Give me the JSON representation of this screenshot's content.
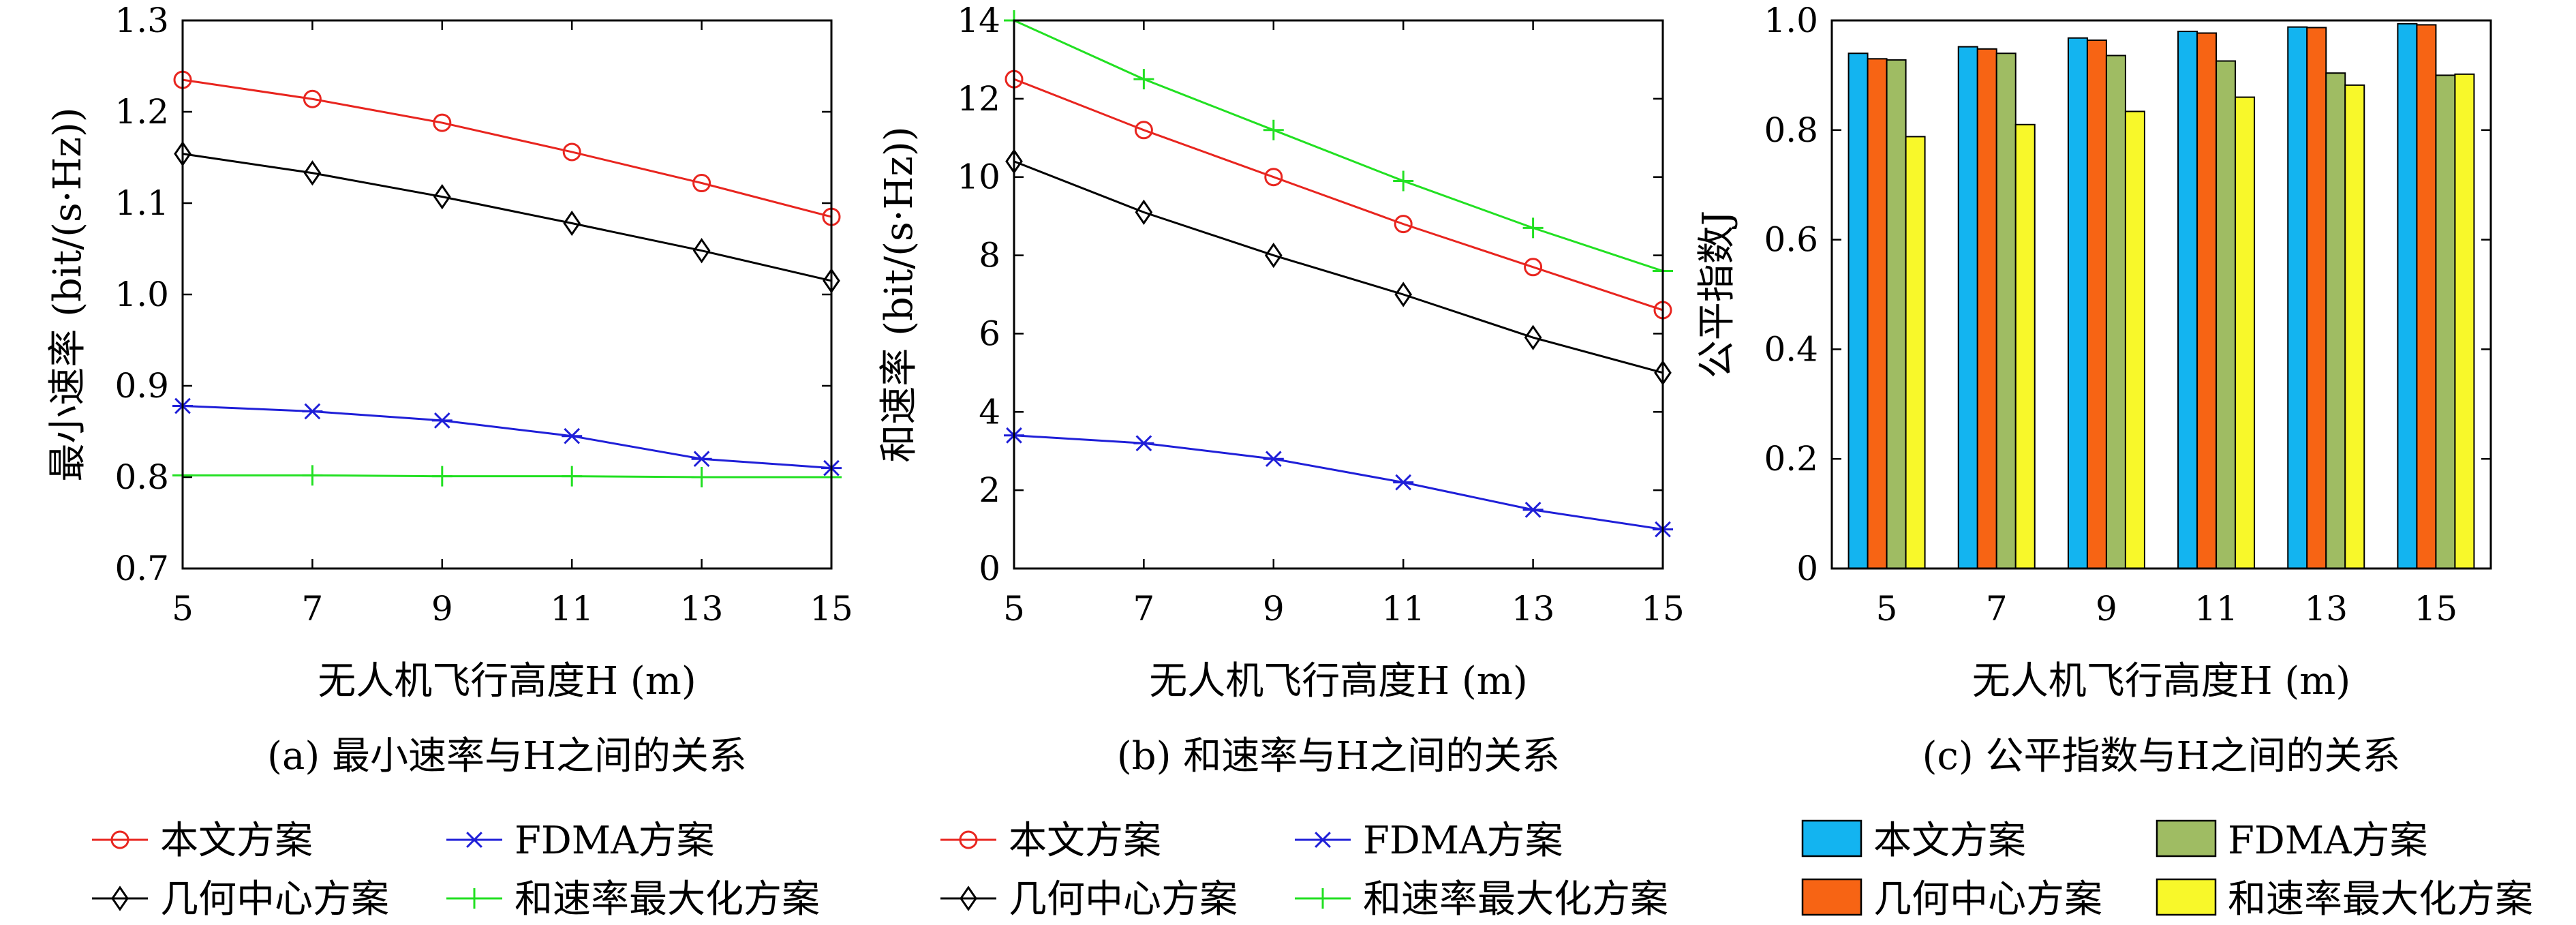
{
  "chart_data": [
    {
      "type": "line",
      "caption": "(a) 最小速率与H之间的关系",
      "xlabel": "无人机飞行高度H (m)",
      "ylabel": "最小速率 (bit/(s·Hz))",
      "x": [
        5,
        7,
        9,
        11,
        13,
        15
      ],
      "xlim": [
        5,
        15
      ],
      "ylim": [
        0.7,
        1.3
      ],
      "xticks": [
        "5",
        "7",
        "9",
        "11",
        "13",
        "15"
      ],
      "yticks": [
        "0.7",
        "0.8",
        "0.9",
        "1.0",
        "1.1",
        "1.2",
        "1.3"
      ],
      "series": [
        {
          "name": "本文方案",
          "color": "#e8251f",
          "marker": "circle",
          "values": [
            1.235,
            1.214,
            1.188,
            1.156,
            1.122,
            1.085
          ]
        },
        {
          "name": "FDMA方案",
          "color": "#1f1fd8",
          "marker": "star",
          "values": [
            0.878,
            0.872,
            0.862,
            0.845,
            0.82,
            0.81
          ]
        },
        {
          "name": "几何中心方案",
          "color": "#000000",
          "marker": "diamond",
          "values": [
            1.154,
            1.133,
            1.107,
            1.078,
            1.048,
            1.015
          ]
        },
        {
          "name": "和速率最大化方案",
          "color": "#22e022",
          "marker": "plus",
          "values": [
            0.802,
            0.802,
            0.801,
            0.801,
            0.8,
            0.8
          ]
        }
      ]
    },
    {
      "type": "line",
      "caption": "(b) 和速率与H之间的关系",
      "xlabel": "无人机飞行高度H (m)",
      "ylabel": "和速率 (bit/(s·Hz))",
      "x": [
        5,
        7,
        9,
        11,
        13,
        15
      ],
      "xlim": [
        5,
        15
      ],
      "ylim": [
        0,
        14
      ],
      "xticks": [
        "5",
        "7",
        "9",
        "11",
        "13",
        "15"
      ],
      "yticks": [
        "0",
        "2",
        "4",
        "6",
        "8",
        "10",
        "12",
        "14"
      ],
      "series": [
        {
          "name": "本文方案",
          "color": "#e8251f",
          "marker": "circle",
          "values": [
            12.5,
            11.2,
            10.0,
            8.8,
            7.7,
            6.6
          ]
        },
        {
          "name": "FDMA方案",
          "color": "#1f1fd8",
          "marker": "star",
          "values": [
            3.4,
            3.2,
            2.8,
            2.2,
            1.5,
            1.0
          ]
        },
        {
          "name": "几何中心方案",
          "color": "#000000",
          "marker": "diamond",
          "values": [
            10.4,
            9.1,
            8.0,
            7.0,
            5.9,
            5.0
          ]
        },
        {
          "name": "和速率最大化方案",
          "color": "#22e022",
          "marker": "plus",
          "values": [
            14.0,
            12.5,
            11.2,
            9.9,
            8.7,
            7.6
          ]
        }
      ]
    },
    {
      "type": "bar",
      "caption": "(c) 公平指数与H之间的关系",
      "xlabel": "无人机飞行高度H (m)",
      "ylabel": "公平指数J",
      "categories": [
        "5",
        "7",
        "9",
        "11",
        "13",
        "15"
      ],
      "ylim": [
        0,
        1.0
      ],
      "yticks": [
        "0",
        "0.2",
        "0.4",
        "0.6",
        "0.8",
        "1.0"
      ],
      "series": [
        {
          "name": "本文方案",
          "color": "#13b4f0",
          "values": [
            0.94,
            0.952,
            0.968,
            0.98,
            0.988,
            0.994
          ]
        },
        {
          "name": "几何中心方案",
          "color": "#f76414",
          "values": [
            0.93,
            0.948,
            0.964,
            0.977,
            0.987,
            0.992
          ]
        },
        {
          "name": "FDMA方案",
          "color": "#9fbc63",
          "values": [
            0.928,
            0.94,
            0.936,
            0.926,
            0.904,
            0.9
          ]
        },
        {
          "name": "和速率最大化方案",
          "color": "#f8f82a",
          "values": [
            0.788,
            0.81,
            0.834,
            0.86,
            0.882,
            0.902
          ]
        }
      ]
    }
  ]
}
